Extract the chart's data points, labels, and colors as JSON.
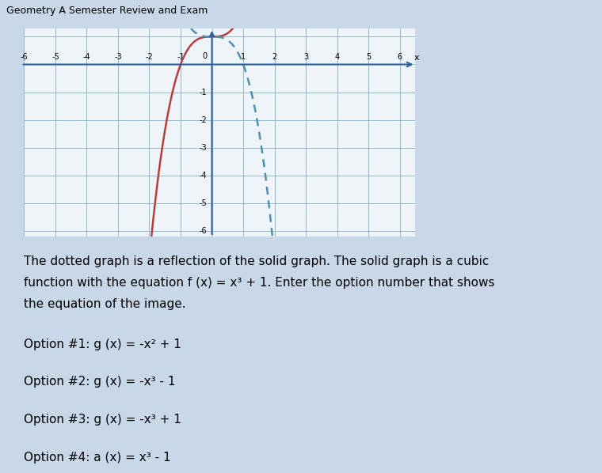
{
  "title": "Geometry A Semester Review and Exam",
  "x_min": -6,
  "x_max": 6,
  "y_min": -6,
  "y_max": 1,
  "solid_color": "#b34040",
  "dotted_color": "#5090b0",
  "graph_bg": "#eef4f8",
  "grid_color": "#90b8d0",
  "page_bg": "#c8d8e8",
  "header_bg": "#8fafc8",
  "header_text": "Geometry A Semester Review and Exam",
  "desc_line1": "The dotted graph is a reflection of the solid graph. The solid graph is a cubic",
  "desc_line2": "function with the equation f (x) = x³ + 1. Enter the option number that shows",
  "desc_line3": "the equation of the image.",
  "opt1": "Option #1: g (x) = -x² + 1",
  "opt2": "Option #2: g (x) = -x³ - 1",
  "opt3": "Option #3: g (x) = -x³ + 1",
  "opt4": "Option #4: a (x) = x³ - 1"
}
